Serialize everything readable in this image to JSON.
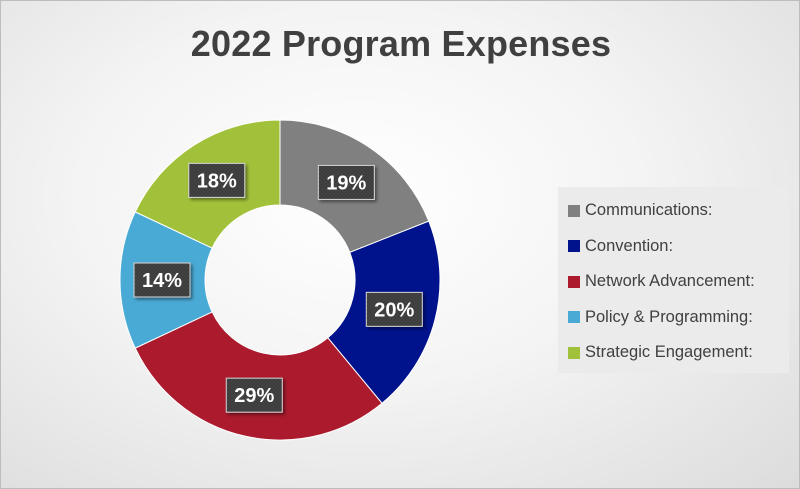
{
  "chart_data": {
    "type": "pie",
    "style": "donut",
    "title": "2022 Program Expenses",
    "legend_position": "right",
    "categories": [
      "Communications:",
      "Convention:",
      "Network Advancement:",
      "Policy & Programming:",
      "Strategic Engagement:"
    ],
    "values": [
      19,
      20,
      29,
      14,
      18
    ],
    "data_labels": [
      "19%",
      "20%",
      "29%",
      "14%",
      "18%"
    ],
    "colors": [
      "#808080",
      "#00128c",
      "#ab1a2d",
      "#4aaad6",
      "#a2c13a"
    ]
  }
}
